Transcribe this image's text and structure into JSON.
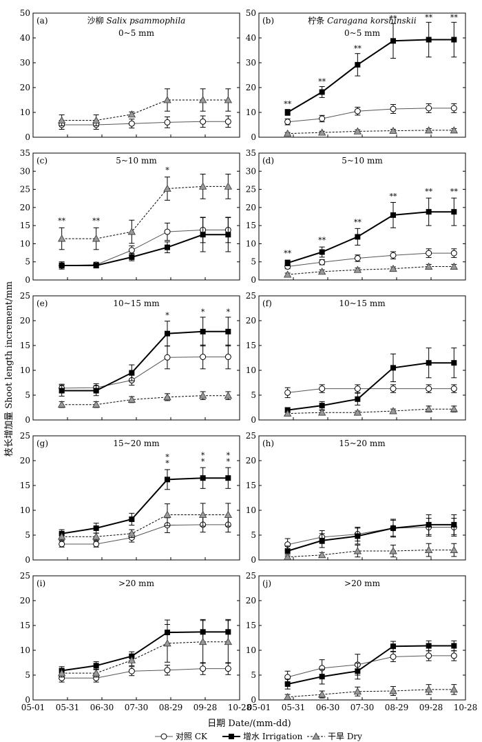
{
  "figure": {
    "ylabel": "枝长增加量 Shoot length increment/mm",
    "xlabel": "日期 Date/(mm-dd)",
    "x_ticks": [
      "05-01",
      "05-31",
      "06-30",
      "07-30",
      "08-29",
      "09-28",
      "10-28"
    ]
  },
  "legend": [
    {
      "name": "对照 CK",
      "style": "ck"
    },
    {
      "name": "增水 Irrigation",
      "style": "irr"
    },
    {
      "name": "干旱 Dry",
      "style": "dry"
    }
  ],
  "species": [
    {
      "name": "沙柳 Salix psammophila",
      "cn": "沙柳 ",
      "latin": "Salix psammophila"
    },
    {
      "name": "柠条 Caragana korshinskii",
      "cn": "柠条 ",
      "latin": "Caragana korshinskii"
    }
  ],
  "chart_data": [
    {
      "panel": "(a)",
      "subtitle": "0~5 mm",
      "species_label": 0,
      "type": "line",
      "ylim": [
        0,
        50
      ],
      "yticks": [
        0,
        10,
        20,
        30,
        40,
        50
      ],
      "x": [
        25,
        55,
        86,
        117,
        148,
        170
      ],
      "series": [
        {
          "name": "CK",
          "values": [
            5,
            5,
            5.5,
            6,
            6.3,
            6.3
          ],
          "err": [
            1.8,
            1.8,
            1.8,
            2.2,
            2.3,
            2.3
          ]
        },
        {
          "name": "Dry",
          "values": [
            6.8,
            6.8,
            9.2,
            15,
            15,
            15
          ],
          "err": [
            2.2,
            2.2,
            1,
            4.5,
            4.5,
            4.5
          ]
        }
      ],
      "sig": []
    },
    {
      "panel": "(b)",
      "subtitle": "0~5 mm",
      "species_label": 1,
      "type": "line",
      "ylim": [
        0,
        50
      ],
      "yticks": [
        0,
        10,
        20,
        30,
        40,
        50
      ],
      "x": [
        25,
        55,
        86,
        117,
        148,
        170
      ],
      "series": [
        {
          "name": "CK",
          "values": [
            6.2,
            7.5,
            10.5,
            11.4,
            11.7,
            11.7
          ],
          "err": [
            1.2,
            1.3,
            1.6,
            1.8,
            1.8,
            1.8
          ]
        },
        {
          "name": "Irrigation",
          "values": [
            10,
            18.2,
            29.2,
            38.8,
            39.3,
            39.3
          ],
          "err": [
            1.2,
            2.2,
            4.5,
            7,
            7,
            7
          ]
        },
        {
          "name": "Dry",
          "values": [
            1.5,
            1.9,
            2.4,
            2.6,
            2.8,
            2.8
          ],
          "err": [
            0.4,
            0.5,
            0.6,
            0.6,
            0.7,
            0.7
          ]
        }
      ],
      "sig": [
        {
          "i": 0,
          "text": "**",
          "value": 11.8
        },
        {
          "i": 1,
          "text": "**",
          "value": 20.8
        },
        {
          "i": 2,
          "text": "**",
          "value": 34.2
        },
        {
          "i": 3,
          "text": "**",
          "value": 46.2
        },
        {
          "i": 4,
          "text": "**",
          "value": 46.7
        },
        {
          "i": 5,
          "text": "**",
          "value": 46.7
        }
      ]
    },
    {
      "panel": "(c)",
      "subtitle": "5~10 mm",
      "species_label": -1,
      "type": "line",
      "ylim": [
        0,
        35
      ],
      "yticks": [
        0,
        5,
        10,
        15,
        20,
        25,
        30,
        35
      ],
      "x": [
        25,
        55,
        86,
        117,
        148,
        170
      ],
      "series": [
        {
          "name": "CK",
          "values": [
            4,
            4.2,
            8.2,
            13.3,
            13.8,
            13.8
          ],
          "err": [
            0.7,
            0.7,
            1.2,
            2.4,
            3.5,
            3.5
          ]
        },
        {
          "name": "Irrigation",
          "values": [
            4,
            4,
            6.3,
            9,
            12.5,
            12.5
          ],
          "err": [
            1,
            0.7,
            1,
            1.5,
            4.7,
            4.7
          ]
        },
        {
          "name": "Dry",
          "values": [
            11.4,
            11.4,
            13.3,
            25.2,
            25.8,
            25.8
          ],
          "err": [
            3,
            3,
            3.2,
            3.2,
            3.4,
            3.4
          ]
        }
      ],
      "sig": [
        {
          "i": 0,
          "text": "**",
          "value": 15.2
        },
        {
          "i": 1,
          "text": "**",
          "value": 15.2
        },
        {
          "i": 3,
          "text": "*",
          "value": 29.2
        }
      ]
    },
    {
      "panel": "(d)",
      "subtitle": "5~10 mm",
      "species_label": -1,
      "type": "line",
      "ylim": [
        0,
        35
      ],
      "yticks": [
        0,
        5,
        10,
        15,
        20,
        25,
        30,
        35
      ],
      "x": [
        25,
        55,
        86,
        117,
        148,
        170
      ],
      "series": [
        {
          "name": "CK",
          "values": [
            3.7,
            4.9,
            6,
            6.8,
            7.4,
            7.4
          ],
          "err": [
            0.6,
            0.7,
            0.9,
            1,
            1.2,
            1.2
          ]
        },
        {
          "name": "Irrigation",
          "values": [
            4.7,
            7.7,
            11.9,
            17.9,
            18.8,
            18.8
          ],
          "err": [
            0.8,
            1.4,
            2.3,
            3.5,
            3.8,
            3.8
          ]
        },
        {
          "name": "Dry",
          "values": [
            1.5,
            2.3,
            2.8,
            3.1,
            3.7,
            3.7
          ],
          "err": [
            0.4,
            0.5,
            0.5,
            0.5,
            0.6,
            0.6
          ]
        }
      ],
      "sig": [
        {
          "i": 0,
          "text": "**",
          "value": 6.3
        },
        {
          "i": 1,
          "text": "**",
          "value": 9.9
        },
        {
          "i": 2,
          "text": "**",
          "value": 14.8
        },
        {
          "i": 3,
          "text": "**",
          "value": 22
        },
        {
          "i": 4,
          "text": "**",
          "value": 23.3
        },
        {
          "i": 5,
          "text": "**",
          "value": 23.3
        }
      ]
    },
    {
      "panel": "(e)",
      "subtitle": "10~15 mm",
      "species_label": -1,
      "type": "line",
      "ylim": [
        0,
        25
      ],
      "yticks": [
        0,
        5,
        10,
        15,
        20,
        25
      ],
      "x": [
        25,
        55,
        86,
        117,
        148,
        170
      ],
      "series": [
        {
          "name": "CK",
          "values": [
            6.4,
            6.5,
            8,
            12.6,
            12.7,
            12.7
          ],
          "err": [
            0.8,
            0.8,
            1,
            2.3,
            2.4,
            2.4
          ]
        },
        {
          "name": "Irrigation",
          "values": [
            5.9,
            5.9,
            9.5,
            17.4,
            17.8,
            17.8
          ],
          "err": [
            1.1,
            1,
            1.6,
            2.5,
            2.9,
            2.9
          ]
        },
        {
          "name": "Dry",
          "values": [
            3.1,
            3.1,
            4.1,
            4.6,
            4.9,
            4.9
          ],
          "err": [
            0.6,
            0.6,
            0.6,
            0.7,
            0.8,
            0.8
          ]
        }
      ],
      "sig": [
        {
          "i": 3,
          "text": "*",
          "value": 20.3
        },
        {
          "i": 4,
          "text": "*",
          "value": 21
        },
        {
          "i": 5,
          "text": "*",
          "value": 21
        }
      ]
    },
    {
      "panel": "(f)",
      "subtitle": "10~15 mm",
      "species_label": -1,
      "type": "line",
      "ylim": [
        0,
        25
      ],
      "yticks": [
        0,
        5,
        10,
        15,
        20,
        25
      ],
      "x": [
        25,
        55,
        86,
        117,
        148,
        170
      ],
      "series": [
        {
          "name": "CK",
          "values": [
            5.5,
            6.3,
            6.3,
            6.3,
            6.3,
            6.3
          ],
          "err": [
            1,
            0.8,
            0.8,
            0.8,
            0.8,
            0.8
          ]
        },
        {
          "name": "Irrigation",
          "values": [
            2,
            2.9,
            4.2,
            10.5,
            11.5,
            11.5
          ],
          "err": [
            0.5,
            0.8,
            1.2,
            2.8,
            3,
            3
          ]
        },
        {
          "name": "Dry",
          "values": [
            1.3,
            1.5,
            1.5,
            1.8,
            2.2,
            2.2
          ],
          "err": [
            0.3,
            0.4,
            0.3,
            0.4,
            0.6,
            0.6
          ]
        }
      ],
      "sig": []
    },
    {
      "panel": "(g)",
      "subtitle": "15~20 mm",
      "species_label": -1,
      "type": "line",
      "ylim": [
        0,
        25
      ],
      "yticks": [
        0,
        5,
        10,
        15,
        20,
        25
      ],
      "x": [
        25,
        55,
        86,
        117,
        148,
        170
      ],
      "series": [
        {
          "name": "CK",
          "values": [
            3.2,
            3.2,
            4.5,
            7,
            7.1,
            7.1
          ],
          "err": [
            0.6,
            0.6,
            0.9,
            1.5,
            1.5,
            1.5
          ]
        },
        {
          "name": "Irrigation",
          "values": [
            5.3,
            6.4,
            8.2,
            16.2,
            16.5,
            16.5
          ],
          "err": [
            0.8,
            1,
            1.2,
            2,
            2.1,
            2.1
          ]
        },
        {
          "name": "Dry",
          "values": [
            4.7,
            4.7,
            5.3,
            9.1,
            9.1,
            9.1
          ],
          "err": [
            0.7,
            0.7,
            0.8,
            2.2,
            2.3,
            2.3
          ]
        }
      ],
      "sig": [
        {
          "i": 3,
          "text": "*",
          "value": 18.7,
          "stack": 2
        },
        {
          "i": 4,
          "text": "*",
          "value": 19,
          "stack": 2
        },
        {
          "i": 5,
          "text": "*",
          "value": 19,
          "stack": 2
        }
      ]
    },
    {
      "panel": "(h)",
      "subtitle": "15~20 mm",
      "species_label": -1,
      "type": "line",
      "ylim": [
        0,
        25
      ],
      "yticks": [
        0,
        5,
        10,
        15,
        20,
        25
      ],
      "x": [
        25,
        55,
        86,
        117,
        148,
        170
      ],
      "series": [
        {
          "name": "CK",
          "values": [
            3.1,
            4.6,
            5.2,
            6.4,
            6.6,
            6.6
          ],
          "err": [
            1.2,
            1.3,
            1.4,
            1.8,
            1.8,
            1.8
          ]
        },
        {
          "name": "Irrigation",
          "values": [
            1.8,
            3.9,
            4.8,
            6.4,
            7.1,
            7.1
          ],
          "err": [
            1,
            1.4,
            1.6,
            1.6,
            2,
            2
          ]
        },
        {
          "name": "Dry",
          "values": [
            0.6,
            1,
            1.8,
            1.8,
            2,
            2
          ],
          "err": [
            0.5,
            0.5,
            1.2,
            1.2,
            1.3,
            1.3
          ]
        }
      ],
      "sig": []
    },
    {
      "panel": "(i)",
      "subtitle": ">20 mm",
      "species_label": -1,
      "type": "line",
      "ylim": [
        0,
        25
      ],
      "yticks": [
        0,
        5,
        10,
        15,
        20,
        25
      ],
      "x": [
        25,
        55,
        86,
        117,
        148,
        170
      ],
      "series": [
        {
          "name": "CK",
          "values": [
            4.4,
            4.4,
            5.8,
            6,
            6.3,
            6.3
          ],
          "err": [
            0.8,
            0.8,
            0.9,
            1,
            1.2,
            1.2
          ]
        },
        {
          "name": "Irrigation",
          "values": [
            5.9,
            6.9,
            8.8,
            13.6,
            13.7,
            13.7
          ],
          "err": [
            0.8,
            0.8,
            0.9,
            2.5,
            2.5,
            2.5
          ]
        },
        {
          "name": "Dry",
          "values": [
            5.4,
            5.4,
            8,
            11.4,
            11.7,
            11.7
          ],
          "err": [
            0.8,
            0.8,
            1.1,
            3.8,
            4.3,
            4.3
          ]
        }
      ],
      "sig": []
    },
    {
      "panel": "(j)",
      "subtitle": ">20 mm",
      "species_label": -1,
      "type": "line",
      "ylim": [
        0,
        25
      ],
      "yticks": [
        0,
        5,
        10,
        15,
        20,
        25
      ],
      "x": [
        25,
        55,
        86,
        117,
        148,
        170
      ],
      "series": [
        {
          "name": "CK",
          "values": [
            4.6,
            6.4,
            7.1,
            8.7,
            8.9,
            8.9
          ],
          "err": [
            1.2,
            1.7,
            2.1,
            1,
            1,
            1
          ]
        },
        {
          "name": "Irrigation",
          "values": [
            3.2,
            4.7,
            5.8,
            10.8,
            10.9,
            10.9
          ],
          "err": [
            1,
            1.5,
            1.6,
            1,
            1,
            1
          ]
        },
        {
          "name": "Dry",
          "values": [
            0.6,
            1.1,
            1.7,
            1.8,
            2.1,
            2.1
          ],
          "err": [
            0.5,
            0.7,
            0.9,
            0.9,
            1,
            1
          ]
        }
      ],
      "sig": []
    }
  ]
}
